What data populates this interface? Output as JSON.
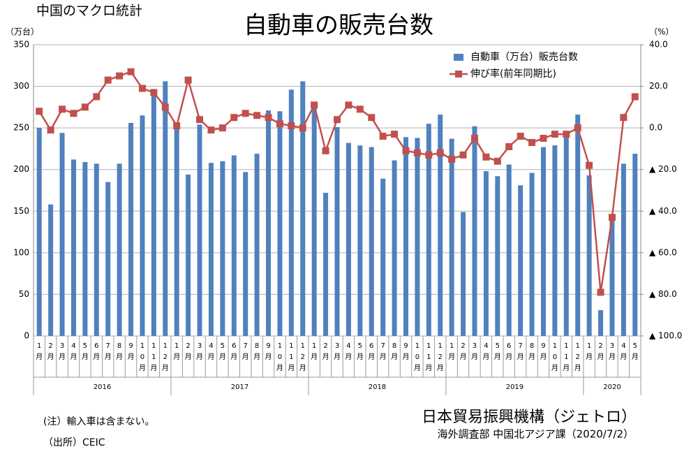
{
  "chart_data": {
    "type": "bar_line",
    "supertitle": "中国のマクロ統計",
    "title": "自動車の販売台数",
    "y_label": "（万台）",
    "y2_label": "（%）",
    "categories": [
      "1月",
      "2月",
      "3月",
      "4月",
      "5月",
      "6月",
      "7月",
      "8月",
      "9月",
      "10月",
      "11月",
      "12月",
      "1月",
      "2月",
      "3月",
      "4月",
      "5月",
      "6月",
      "7月",
      "8月",
      "9月",
      "10月",
      "11月",
      "12月",
      "1月",
      "2月",
      "3月",
      "4月",
      "5月",
      "6月",
      "7月",
      "8月",
      "9月",
      "10月",
      "11月",
      "12月",
      "1月",
      "2月",
      "3月",
      "4月",
      "5月",
      "6月",
      "7月",
      "8月",
      "9月",
      "10月",
      "11月",
      "12月",
      "1月",
      "2月",
      "3月",
      "4月",
      "5月"
    ],
    "year_groups": [
      "2016",
      "2017",
      "2018",
      "2019",
      "2020"
    ],
    "series": [
      {
        "name": "自動車（万台）販売台数",
        "color": "#4f81bd",
        "type": "bar",
        "values": [
          250,
          158,
          244,
          212,
          209,
          207,
          185,
          207,
          256,
          265,
          295,
          306,
          252,
          194,
          254,
          208,
          210,
          217,
          197,
          219,
          271,
          270,
          296,
          306,
          280,
          172,
          251,
          232,
          229,
          227,
          189,
          211,
          239,
          238,
          255,
          266,
          237,
          149,
          252,
          198,
          192,
          206,
          181,
          196,
          227,
          229,
          242,
          266,
          193,
          31,
          143,
          207,
          219
        ]
      },
      {
        "name": "伸び率(前年同期比)",
        "color": "#c0504d",
        "type": "line",
        "axis": "y2",
        "values": [
          8,
          -1,
          9,
          7,
          10,
          15,
          23,
          25,
          27,
          19,
          17,
          10,
          1,
          23,
          4,
          -1,
          0,
          5,
          7,
          6,
          5,
          2,
          1,
          0,
          11,
          -11,
          4,
          11,
          9,
          5,
          -4,
          -3,
          -11,
          -12,
          -13,
          -12,
          -15,
          -13,
          -5,
          -14,
          -16,
          -9,
          -4,
          -7,
          -5,
          -3,
          -3,
          0,
          -18,
          -79,
          -43,
          5,
          15
        ]
      }
    ],
    "ylim": [
      0,
      350
    ],
    "yticks": [
      0,
      50,
      100,
      150,
      200,
      250,
      300,
      350
    ],
    "y2lim": [
      -100,
      40
    ],
    "y2ticks": [
      {
        "value": 40,
        "label": "40.0"
      },
      {
        "value": 20,
        "label": "20.0"
      },
      {
        "value": 0,
        "label": "0.0"
      },
      {
        "value": -20,
        "label": "▲ 20.0"
      },
      {
        "value": -40,
        "label": "▲ 40.0"
      },
      {
        "value": -60,
        "label": "▲ 60.0"
      },
      {
        "value": -80,
        "label": "▲ 80.0"
      },
      {
        "value": -100,
        "label": "▲ 100.0"
      }
    ],
    "grid": true,
    "legend": "upper right",
    "note": "(注）輸入車は含まない。",
    "source": "（出所）CEIC",
    "organization": "日本貿易振興機構（ジェトロ）",
    "department": "海外調査部 中国北アジア課（2020/7/2）"
  }
}
